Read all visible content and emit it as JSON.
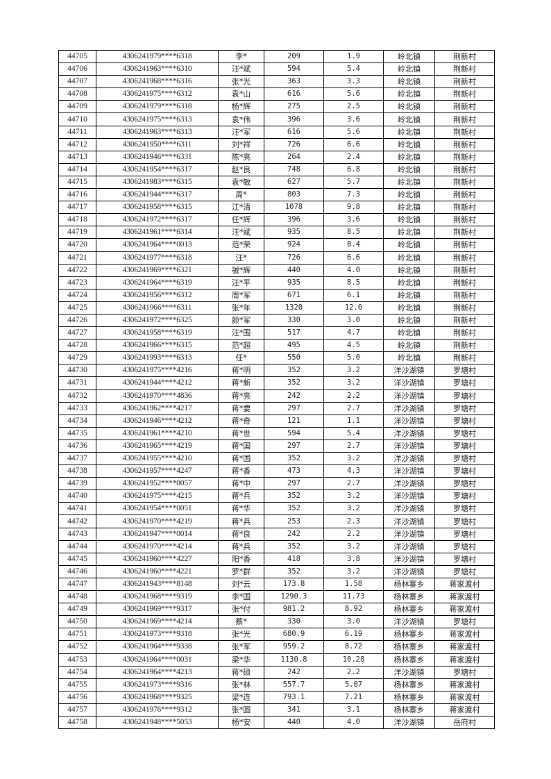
{
  "table": {
    "rows": [
      [
        "44705",
        "4306241979****6318",
        "李*",
        "209",
        "1.9",
        "岭北镇",
        "荆新村"
      ],
      [
        "44706",
        "4306241963****6310",
        "汪*斌",
        "594",
        "5.4",
        "岭北镇",
        "荆新村"
      ],
      [
        "44707",
        "4306241968****6316",
        "张*光",
        "363",
        "3.3",
        "岭北镇",
        "荆新村"
      ],
      [
        "44708",
        "4306241975****6312",
        "袁*山",
        "616",
        "5.6",
        "岭北镇",
        "荆新村"
      ],
      [
        "44709",
        "4306241979****6318",
        "杨*辉",
        "275",
        "2.5",
        "岭北镇",
        "荆新村"
      ],
      [
        "44710",
        "4306241975****6313",
        "袁*伟",
        "396",
        "3.6",
        "岭北镇",
        "荆新村"
      ],
      [
        "44711",
        "4306241963****6313",
        "汪*军",
        "616",
        "5.6",
        "岭北镇",
        "荆新村"
      ],
      [
        "44712",
        "4306241950****6311",
        "刘*祥",
        "726",
        "6.6",
        "岭北镇",
        "荆新村"
      ],
      [
        "44713",
        "4306241946****6331",
        "陈*亮",
        "264",
        "2.4",
        "岭北镇",
        "荆新村"
      ],
      [
        "44714",
        "4306241954****6317",
        "赵*良",
        "748",
        "6.8",
        "岭北镇",
        "荆新村"
      ],
      [
        "44715",
        "4306241983****6315",
        "袁*敏",
        "627",
        "5.7",
        "岭北镇",
        "荆新村"
      ],
      [
        "44716",
        "4306241944****6317",
        "周*",
        "803",
        "7.3",
        "岭北镇",
        "荆新村"
      ],
      [
        "44717",
        "4306241958****6315",
        "江*清",
        "1078",
        "9.8",
        "岭北镇",
        "荆新村"
      ],
      [
        "44718",
        "4306241972****6317",
        "任*辉",
        "396",
        "3.6",
        "岭北镇",
        "荆新村"
      ],
      [
        "44719",
        "4306241961****6314",
        "汪*斌",
        "935",
        "8.5",
        "岭北镇",
        "荆新村"
      ],
      [
        "44720",
        "4306241964****0013",
        "范*荣",
        "924",
        "8.4",
        "岭北镇",
        "荆新村"
      ],
      [
        "44721",
        "4306241977****6318",
        "汪*",
        "726",
        "6.6",
        "岭北镇",
        "荆新村"
      ],
      [
        "44722",
        "4306241969****6321",
        "虢*辉",
        "440",
        "4.0",
        "岭北镇",
        "荆新村"
      ],
      [
        "44723",
        "4306241964****6319",
        "汪*平",
        "935",
        "8.5",
        "岭北镇",
        "荆新村"
      ],
      [
        "44724",
        "4306241956****6312",
        "周*军",
        "671",
        "6.1",
        "岭北镇",
        "荆新村"
      ],
      [
        "44725",
        "4306241966****6311",
        "张*年",
        "1320",
        "12.0",
        "岭北镇",
        "荆新村"
      ],
      [
        "44726",
        "4306241972****6325",
        "颜*军",
        "330",
        "3.0",
        "岭北镇",
        "荆新村"
      ],
      [
        "44727",
        "4306241958****6319",
        "汪*围",
        "517",
        "4.7",
        "岭北镇",
        "荆新村"
      ],
      [
        "44728",
        "4306241966****6315",
        "范*超",
        "495",
        "4.5",
        "岭北镇",
        "荆新村"
      ],
      [
        "44729",
        "4306241993****6313",
        "任*",
        "550",
        "5.0",
        "岭北镇",
        "荆新村"
      ],
      [
        "44730",
        "4306241975****4216",
        "蒋*明",
        "352",
        "3.2",
        "洋沙湖镇",
        "罗塘村"
      ],
      [
        "44731",
        "4306241944****4212",
        "蒋*新",
        "352",
        "3.2",
        "洋沙湖镇",
        "罗塘村"
      ],
      [
        "44732",
        "4306241970****4836",
        "蒋*亮",
        "242",
        "2.2",
        "洋沙湖镇",
        "罗塘村"
      ],
      [
        "44733",
        "4306241962****4217",
        "蒋*要",
        "297",
        "2.7",
        "洋沙湖镇",
        "罗塘村"
      ],
      [
        "44734",
        "4306241946****4212",
        "蒋*奇",
        "121",
        "1.1",
        "洋沙湖镇",
        "罗塘村"
      ],
      [
        "44735",
        "4306241961****4210",
        "蒋*世",
        "594",
        "5.4",
        "洋沙湖镇",
        "罗塘村"
      ],
      [
        "44736",
        "4306241965****4219",
        "蒋*国",
        "297",
        "2.7",
        "洋沙湖镇",
        "罗塘村"
      ],
      [
        "44737",
        "4306241955****4210",
        "蒋*国",
        "352",
        "3.2",
        "洋沙湖镇",
        "罗塘村"
      ],
      [
        "44738",
        "4306241957****4247",
        "蒋*香",
        "473",
        "4.3",
        "洋沙湖镇",
        "罗塘村"
      ],
      [
        "44739",
        "4306241952****0057",
        "蒋*中",
        "297",
        "2.7",
        "洋沙湖镇",
        "罗塘村"
      ],
      [
        "44740",
        "4306241975****4215",
        "蒋*兵",
        "352",
        "3.2",
        "洋沙湖镇",
        "罗塘村"
      ],
      [
        "44741",
        "4306241954****0051",
        "蒋*华",
        "352",
        "3.2",
        "洋沙湖镇",
        "罗塘村"
      ],
      [
        "44742",
        "4306241970****4219",
        "蒋*兵",
        "253",
        "2.3",
        "洋沙湖镇",
        "罗塘村"
      ],
      [
        "44743",
        "4306241947****0014",
        "蒋*良",
        "242",
        "2.2",
        "洋沙湖镇",
        "罗塘村"
      ],
      [
        "44744",
        "4306241970****4214",
        "蒋*兵",
        "352",
        "3.2",
        "洋沙湖镇",
        "罗塘村"
      ],
      [
        "44745",
        "4306241960****4227",
        "阳*香",
        "418",
        "3.8",
        "洋沙湖镇",
        "罗塘村"
      ],
      [
        "44746",
        "4306241960****4221",
        "罗*群",
        "352",
        "3.2",
        "洋沙湖镇",
        "罗塘村"
      ],
      [
        "44747",
        "4306241943****8148",
        "刘*云",
        "173.8",
        "1.58",
        "杨林寨乡",
        "蒋家渡村"
      ],
      [
        "44748",
        "4306241968****9319",
        "李*国",
        "1290.3",
        "11.73",
        "杨林寨乡",
        "蒋家渡村"
      ],
      [
        "44749",
        "4306241969****9317",
        "张*付",
        "981.2",
        "8.92",
        "杨林寨乡",
        "蒋家渡村"
      ],
      [
        "44750",
        "4306241969****4214",
        "蔡*",
        "330",
        "3.0",
        "洋沙湖镇",
        "罗塘村"
      ],
      [
        "44751",
        "4306241973****9318",
        "张*光",
        "680.9",
        "6.19",
        "杨林寨乡",
        "蒋家渡村"
      ],
      [
        "44752",
        "4306241964****9338",
        "张*军",
        "959.2",
        "8.72",
        "杨林寨乡",
        "蒋家渡村"
      ],
      [
        "44753",
        "4306241964****0031",
        "梁*华",
        "1130.8",
        "10.28",
        "杨林寨乡",
        "蒋家渡村"
      ],
      [
        "44754",
        "4306241964****4213",
        "蒋*硕",
        "242",
        "2.2",
        "洋沙湖镇",
        "罗塘村"
      ],
      [
        "44755",
        "4306241973****9316",
        "张*林",
        "557.7",
        "5.07",
        "杨林寨乡",
        "蒋家渡村"
      ],
      [
        "44756",
        "4306241968****9325",
        "梁*连",
        "793.1",
        "7.21",
        "杨林寨乡",
        "蒋家渡村"
      ],
      [
        "44757",
        "4306241976****9312",
        "张*圆",
        "341",
        "3.1",
        "杨林寨乡",
        "蒋家渡村"
      ],
      [
        "44758",
        "4306241948****5053",
        "杨*安",
        "440",
        "4.0",
        "洋沙湖镇",
        "岳府村"
      ]
    ]
  }
}
